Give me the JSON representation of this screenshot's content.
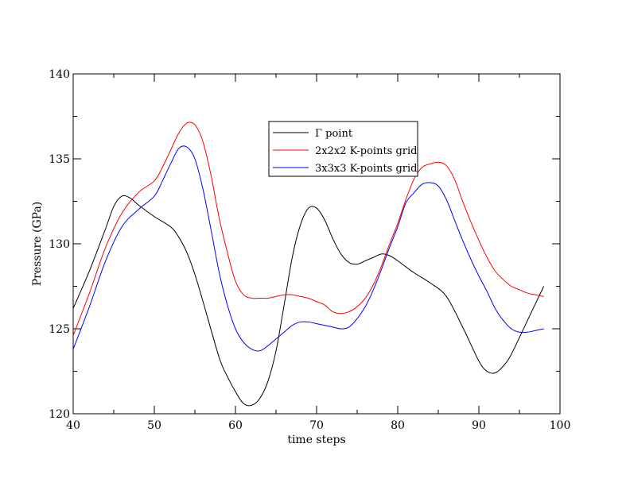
{
  "chart_data": {
    "type": "line",
    "title": "",
    "xlabel": "time steps",
    "ylabel": "Pressure (GPa)",
    "xlim": [
      40,
      100
    ],
    "ylim": [
      120,
      140
    ],
    "xticks": [
      40,
      50,
      60,
      70,
      80,
      90,
      100
    ],
    "yticks": [
      120,
      125,
      130,
      135,
      140
    ],
    "grid": false,
    "legend_position": "top-center",
    "series": [
      {
        "name": "Γ  point",
        "color": "#000000",
        "x": [
          40,
          42,
          44,
          45,
          46,
          47,
          48,
          50,
          52,
          53,
          54,
          55,
          56,
          58,
          59,
          60,
          61,
          62,
          63,
          64,
          65,
          66,
          67,
          68,
          69,
          70,
          71,
          72,
          73,
          74,
          75,
          76,
          77,
          78,
          79,
          80,
          82,
          84,
          86,
          88,
          90,
          91,
          92,
          93,
          94,
          96,
          98
        ],
        "y": [
          126.2,
          128.4,
          130.9,
          132.2,
          132.8,
          132.7,
          132.3,
          131.6,
          131.0,
          130.4,
          129.5,
          128.2,
          126.6,
          123.3,
          122.2,
          121.3,
          120.6,
          120.5,
          120.9,
          121.9,
          123.7,
          126.4,
          129.2,
          131.1,
          132.1,
          132.1,
          131.4,
          130.3,
          129.4,
          128.9,
          128.8,
          129.0,
          129.2,
          129.4,
          129.3,
          129.0,
          128.3,
          127.7,
          126.9,
          125.1,
          123.1,
          122.5,
          122.4,
          122.8,
          123.5,
          125.5,
          127.5
        ]
      },
      {
        "name": "2x2x2 K-points grid",
        "color": "#ff0000",
        "x": [
          40,
          42,
          44,
          46,
          48,
          50,
          51,
          52,
          53,
          54,
          55,
          56,
          57,
          58,
          59,
          60,
          61,
          62,
          63,
          64,
          65,
          66,
          67,
          68,
          69,
          70,
          71,
          72,
          73,
          74,
          75,
          76,
          77,
          78,
          79,
          80,
          81,
          82,
          83,
          84,
          85,
          86,
          87,
          88,
          89,
          90,
          91,
          92,
          93,
          94,
          95,
          96,
          97,
          98
        ],
        "y": [
          124.6,
          127.1,
          129.8,
          131.8,
          133.0,
          133.7,
          134.5,
          135.5,
          136.5,
          137.1,
          137.0,
          136.0,
          134.0,
          131.5,
          129.5,
          127.8,
          127.0,
          126.8,
          126.8,
          126.8,
          126.9,
          127.0,
          127.0,
          126.9,
          126.8,
          126.6,
          126.4,
          126.0,
          125.9,
          126.0,
          126.3,
          126.8,
          127.6,
          128.7,
          130.0,
          131.2,
          132.6,
          133.8,
          134.5,
          134.7,
          134.8,
          134.6,
          133.8,
          132.5,
          131.3,
          130.2,
          129.2,
          128.4,
          127.9,
          127.5,
          127.3,
          127.1,
          127.0,
          126.9
        ]
      },
      {
        "name": "3x3x3 K-points grid",
        "color": "#0000ff",
        "x": [
          40,
          42,
          44,
          46,
          48,
          50,
          51,
          52,
          53,
          54,
          55,
          56,
          57,
          58,
          59,
          60,
          61,
          62,
          63,
          64,
          65,
          66,
          67,
          68,
          69,
          70,
          71,
          72,
          73,
          74,
          75,
          76,
          77,
          78,
          79,
          80,
          81,
          82,
          83,
          84,
          85,
          86,
          87,
          88,
          89,
          90,
          91,
          92,
          93,
          94,
          95,
          96,
          97,
          98
        ],
        "y": [
          123.8,
          126.3,
          129.0,
          131.0,
          132.0,
          132.8,
          133.7,
          134.7,
          135.6,
          135.7,
          135.0,
          133.2,
          130.8,
          128.3,
          126.4,
          125.0,
          124.2,
          123.8,
          123.7,
          124.0,
          124.4,
          124.8,
          125.2,
          125.4,
          125.4,
          125.3,
          125.2,
          125.1,
          125.0,
          125.1,
          125.6,
          126.3,
          127.3,
          128.5,
          129.8,
          131.0,
          132.4,
          133.0,
          133.5,
          133.6,
          133.4,
          132.6,
          131.4,
          130.2,
          129.1,
          128.1,
          127.2,
          126.2,
          125.5,
          125.0,
          124.8,
          124.8,
          124.9,
          125.0
        ]
      }
    ]
  }
}
